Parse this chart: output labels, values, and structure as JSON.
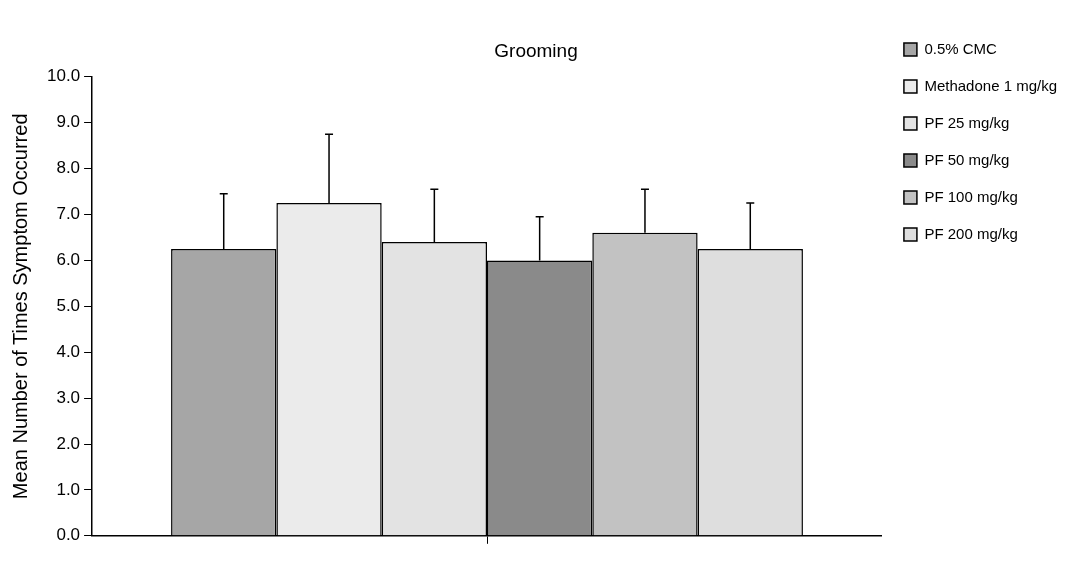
{
  "chart_data": {
    "type": "bar",
    "title": "Grooming",
    "ylabel": "Mean Number of Times Symptom Occurred",
    "categories": [
      null
    ],
    "series": [
      {
        "name": "0.5% CMC",
        "color": "#a6a6a6",
        "values": [
          6.25
        ],
        "errors": [
          [
            6.25,
            7.45
          ]
        ]
      },
      {
        "name": "Methadone 1 mg/kg",
        "color": "#ebebeb",
        "values": [
          7.25
        ],
        "errors": [
          [
            7.25,
            8.75
          ]
        ]
      },
      {
        "name": "PF 25 mg/kg",
        "color": "#e3e3e3",
        "values": [
          6.4
        ],
        "errors": [
          [
            6.4,
            7.55
          ]
        ]
      },
      {
        "name": "PF 50 mg/kg",
        "color": "#8a8a8a",
        "values": [
          6.0
        ],
        "errors": [
          [
            6.0,
            6.95
          ]
        ]
      },
      {
        "name": "PF 100 mg/kg",
        "color": "#c2c2c2",
        "values": [
          6.6
        ],
        "errors": [
          [
            6.6,
            7.55
          ]
        ]
      },
      {
        "name": "PF 200 mg/kg",
        "color": "#dedede",
        "values": [
          6.25
        ],
        "errors": [
          [
            6.25,
            7.25
          ]
        ]
      }
    ],
    "ylim": [
      0,
      10
    ],
    "yticks": [
      {
        "value": 0,
        "label": "0.0"
      },
      {
        "value": 1,
        "label": "1.0"
      },
      {
        "value": 2,
        "label": "2.0"
      },
      {
        "value": 3,
        "label": "3.0"
      },
      {
        "value": 4,
        "label": "4.0"
      },
      {
        "value": 5,
        "label": "5.0"
      },
      {
        "value": 6,
        "label": "6.0"
      },
      {
        "value": 7,
        "label": "7.0"
      },
      {
        "value": 8,
        "label": "8.0"
      },
      {
        "value": 9,
        "label": "9.0"
      },
      {
        "value": 10,
        "label": "10.0"
      }
    ],
    "grid": false,
    "legend": "top right"
  }
}
